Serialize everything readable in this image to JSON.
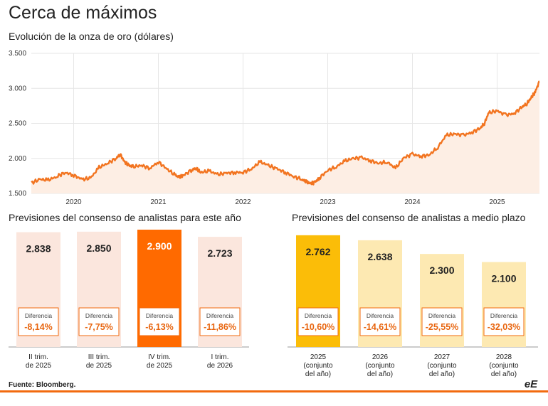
{
  "title": "Cerca de máximos",
  "subtitle": "Evolución de la onza de oro (dólares)",
  "source": "Fuente: Bloomberg.",
  "logo": "eE",
  "colors": {
    "accent": "#f26a0f",
    "line": "#f27420",
    "area": "#fdeee4",
    "bar_left_bg": "#fbe6dd",
    "bar_left_highlight": "#ff6a00",
    "bar_right_highlight": "#fbbd08",
    "bar_right_bg": "#fde9b2",
    "diff_text": "#e8650f"
  },
  "chart_data": [
    {
      "type": "line",
      "title": "Evolución de la onza de oro (dólares)",
      "y_ticks": [
        "1.500",
        "2.000",
        "2.500",
        "3.000",
        "3.500"
      ],
      "ylim": [
        1500,
        3500
      ],
      "x_tick_labels": [
        "2020",
        "2021",
        "2022",
        "2023",
        "2024",
        "2025"
      ],
      "x_ticks": [
        2020.0,
        2021.0,
        2022.0,
        2023.0,
        2024.0,
        2025.0
      ],
      "xlim": [
        2019.5,
        2025.5
      ],
      "grid": true,
      "series": [
        {
          "x": [
            2019.5,
            2019.6,
            2019.7,
            2019.8,
            2019.9,
            2020.0,
            2020.1,
            2020.2,
            2020.3,
            2020.4,
            2020.5,
            2020.55,
            2020.6,
            2020.65,
            2020.7,
            2020.8,
            2020.9,
            2021.0,
            2021.1,
            2021.2,
            2021.25,
            2021.3,
            2021.4,
            2021.45,
            2021.5,
            2021.6,
            2021.7,
            2021.8,
            2021.9,
            2022.0,
            2022.1,
            2022.2,
            2022.3,
            2022.4,
            2022.5,
            2022.6,
            2022.7,
            2022.75,
            2022.8,
            2022.85,
            2022.9,
            2023.0,
            2023.1,
            2023.2,
            2023.3,
            2023.4,
            2023.5,
            2023.6,
            2023.7,
            2023.8,
            2023.9,
            2024.0,
            2024.1,
            2024.2,
            2024.3,
            2024.4,
            2024.5,
            2024.6,
            2024.7,
            2024.8,
            2024.85,
            2024.9,
            2025.0,
            2025.1,
            2025.2,
            2025.3,
            2025.35,
            2025.4,
            2025.45,
            2025.5
          ],
          "y": [
            1650,
            1700,
            1690,
            1740,
            1800,
            1760,
            1700,
            1720,
            1870,
            1930,
            2000,
            2060,
            1950,
            1900,
            1880,
            1900,
            1860,
            1950,
            1850,
            1760,
            1730,
            1760,
            1840,
            1860,
            1800,
            1820,
            1770,
            1790,
            1800,
            1800,
            1850,
            1950,
            1900,
            1850,
            1800,
            1740,
            1700,
            1660,
            1640,
            1660,
            1720,
            1830,
            1880,
            1960,
            2000,
            2010,
            1970,
            1930,
            1950,
            1860,
            2010,
            2060,
            2030,
            2050,
            2160,
            2330,
            2350,
            2330,
            2370,
            2430,
            2500,
            2650,
            2680,
            2620,
            2640,
            2740,
            2780,
            2860,
            2950,
            3100
          ]
        }
      ]
    },
    {
      "type": "bar",
      "title": "Previsiones del consenso de analistas para este año",
      "categories": [
        "II trim. de 2025",
        "III trim. de 2025",
        "IV trim. de 2025",
        "I trim. de 2026"
      ],
      "category_lines": [
        [
          "II trim.",
          "de 2025"
        ],
        [
          "III trim.",
          "de 2025"
        ],
        [
          "IV trim.",
          "de 2025"
        ],
        [
          "I trim.",
          "de 2026"
        ]
      ],
      "values": [
        2838,
        2850,
        2900,
        2723
      ],
      "value_labels": [
        "2.838",
        "2.850",
        "2.900",
        "2.723"
      ],
      "diff_label": "Diferencia",
      "diffs": [
        "-8,14%",
        "-7,75%",
        "-6,13%",
        "-11,86%"
      ],
      "highlight_index": 2
    },
    {
      "type": "bar",
      "title": "Previsiones del consenso de analistas a medio plazo",
      "categories": [
        "2025 (conjunto del año)",
        "2026 (conjunto del año)",
        "2027 (conjunto del año)",
        "2028 (conjunto del año)"
      ],
      "category_lines": [
        [
          "2025",
          "(conjunto",
          "del año)"
        ],
        [
          "2026",
          "(conjunto",
          "del año)"
        ],
        [
          "2027",
          "(conjunto",
          "del año)"
        ],
        [
          "2028",
          "(conjunto",
          "del año)"
        ]
      ],
      "values": [
        2762,
        2638,
        2300,
        2100
      ],
      "value_labels": [
        "2.762",
        "2.638",
        "2.300",
        "2.100"
      ],
      "diff_label": "Diferencia",
      "diffs": [
        "-10,60%",
        "-14,61%",
        "-25,55%",
        "-32,03%"
      ],
      "highlight_index": 0
    }
  ]
}
